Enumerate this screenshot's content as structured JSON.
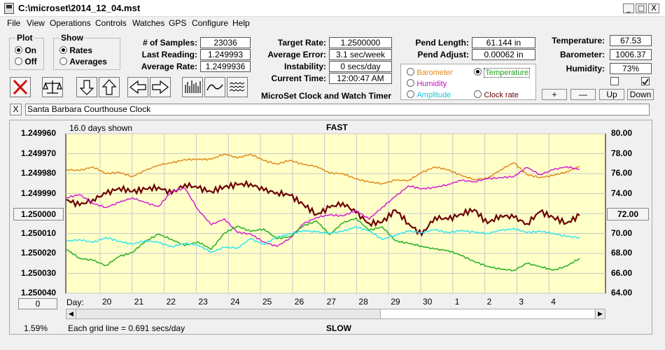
{
  "window": {
    "title": "C:\\microset\\2014_12_04.mst",
    "minimize": "_",
    "maximize": "□",
    "close": "X"
  },
  "menu": [
    "File",
    "View",
    "Operations",
    "Controls",
    "Watches",
    "GPS",
    "Configure",
    "Help"
  ],
  "plot_group": {
    "title": "Plot",
    "on_label": "On",
    "off_label": "Off",
    "selected": "On"
  },
  "show_group": {
    "title": "Show",
    "rates_label": "Rates",
    "averages_label": "Averages",
    "selected": "Rates"
  },
  "stats": {
    "samples_label": "# of Samples:",
    "samples": "23036",
    "last_label": "Last Reading:",
    "last": "1.249993",
    "avg_label": "Average Rate:",
    "avg": "1.2499936",
    "target_label": "Target Rate:",
    "target": "1.2500000",
    "error_label": "Average Error:",
    "error": "3.1 sec/week",
    "instab_label": "Instability:",
    "instab": "0 secs/day",
    "time_label": "Current Time:",
    "time": "12:00:47 AM",
    "pend_len_label": "Pend Length:",
    "pend_len": "61.144 in",
    "pend_adj_label": "Pend Adjust:",
    "pend_adj": "0.00062 in",
    "temp_label": "Temperature:",
    "temp": "67.53",
    "baro_label": "Barometer:",
    "baro": "1006.37",
    "humid_label": "Humidity:",
    "humid": "73%"
  },
  "app_caption": "MicroSet Clock and Watch Timer",
  "series_select": {
    "barometer": "Barometer",
    "temperature": "Temperature",
    "humidity": "Humidity",
    "amplitude": "Amplitude",
    "clock_rate": "Clock rate",
    "selected": "Temperature"
  },
  "step_buttons": {
    "plus": "+",
    "minus": "—",
    "up": "Up",
    "down": "Down"
  },
  "clock_name": "Santa Barbara Courthouse Clock",
  "clear_label": "X",
  "chart_data": {
    "type": "line",
    "days_shown": "16.0 days shown",
    "top_label": "FAST",
    "bottom_label": "SLOW",
    "grid_note": "Each grid line = 0.691 secs/day",
    "left_ticks": [
      "1.249960",
      "1.249970",
      "1.249980",
      "1.249990",
      "1.250000",
      "1.250010",
      "1.250020",
      "1.250030",
      "1.250040"
    ],
    "right_ticks": [
      "80.00",
      "78.00",
      "76.00",
      "74.00",
      "72.00",
      "70.00",
      "68.00",
      "66.00",
      "64.00"
    ],
    "left_ylim": [
      1.24996,
      1.25004
    ],
    "right_ylim": [
      64,
      80
    ],
    "x_label": "Day:",
    "days": [
      "20",
      "21",
      "22",
      "23",
      "24",
      "25",
      "26",
      "27",
      "28",
      "29",
      "30",
      "1",
      "2",
      "3",
      "4"
    ],
    "left_center_value": "1.250000",
    "right_center_value": "72.00",
    "offset_value": "0",
    "percent": "1.59%",
    "colors": {
      "rate": "#6b0000",
      "temperature": "#e08a1c",
      "humidity": "#d21fd2",
      "amplitude": "#2ee6f0",
      "barometer": "#22b022",
      "plot_bg": "#ffffc8"
    },
    "series": [
      {
        "name": "Clock rate",
        "color": "#6b0000",
        "values": [
          1.249993,
          1.249995,
          1.249992,
          1.24999,
          1.249988,
          1.24999,
          1.249988,
          1.249986,
          1.249989,
          1.249985,
          1.249988,
          1.24999,
          1.249987,
          1.249985,
          1.249984,
          1.249988,
          1.24999,
          1.249992,
          1.249996,
          1.25,
          1.249996,
          1.249994,
          1.25,
          1.250006,
          1.250005,
          1.249998,
          1.250004,
          1.25001,
          1.250002,
          1.250004,
          1.250001,
          1.249998,
          1.250004,
          1.25,
          1.250002,
          1.250006,
          1.25,
          1.250002,
          1.250004,
          1.25
        ]
      },
      {
        "name": "Temperature",
        "color": "#e08a1c",
        "values": [
          76.5,
          76.3,
          76.6,
          75.9,
          76.1,
          75.8,
          76.4,
          76.9,
          77.0,
          77.3,
          77.4,
          77.5,
          78.1,
          77.6,
          77.9,
          77.2,
          76.9,
          77.4,
          77.0,
          76.8,
          76.0,
          75.9,
          75.4,
          75.2,
          75.1,
          75.4,
          75.3,
          76.0,
          76.6,
          76.4,
          75.9,
          75.5,
          75.5,
          76.3,
          77.0,
          75.9,
          75.7,
          75.9,
          76.2,
          76.6
        ]
      },
      {
        "name": "Humidity",
        "color": "#d21fd2",
        "values": [
          73.5,
          73.8,
          73.0,
          72.7,
          73.2,
          73.6,
          73.0,
          72.6,
          74.2,
          74.6,
          72.5,
          70.9,
          71.4,
          70.0,
          69.9,
          69.2,
          68.8,
          69.6,
          70.9,
          71.5,
          71.8,
          71.8,
          72.4,
          71.5,
          72.6,
          73.6,
          74.7,
          74.5,
          74.7,
          75.0,
          75.3,
          75.1,
          75.4,
          75.6,
          75.8,
          76.7,
          75.9,
          76.3,
          76.6,
          76.4
        ]
      },
      {
        "name": "Barometer",
        "color": "#22b022",
        "values": [
          68.4,
          67.6,
          67.4,
          66.8,
          67.6,
          68.0,
          69.2,
          70.0,
          69.5,
          68.8,
          69.1,
          68.3,
          70.0,
          70.8,
          70.3,
          70.5,
          69.4,
          69.6,
          70.7,
          71.3,
          70.0,
          71.1,
          71.5,
          70.2,
          70.6,
          69.3,
          69.1,
          68.8,
          68.4,
          68.2,
          67.7,
          67.2,
          66.8,
          66.5,
          66.3,
          66.9,
          66.6,
          66.3,
          66.8,
          67.6
        ]
      },
      {
        "name": "Amplitude",
        "color": "#2ee6f0",
        "values": [
          69.3,
          69.4,
          69.0,
          69.5,
          69.2,
          69.0,
          69.4,
          69.1,
          68.6,
          68.9,
          68.8,
          68.2,
          68.7,
          68.6,
          69.4,
          68.8,
          69.6,
          70.0,
          70.4,
          70.2,
          70.0,
          70.1,
          70.6,
          70.3,
          69.5,
          69.9,
          70.2,
          70.0,
          70.3,
          70.1,
          70.4,
          70.2,
          70.0,
          70.2,
          70.4,
          70.1,
          70.3,
          70.1,
          69.7,
          69.5
        ]
      }
    ]
  }
}
